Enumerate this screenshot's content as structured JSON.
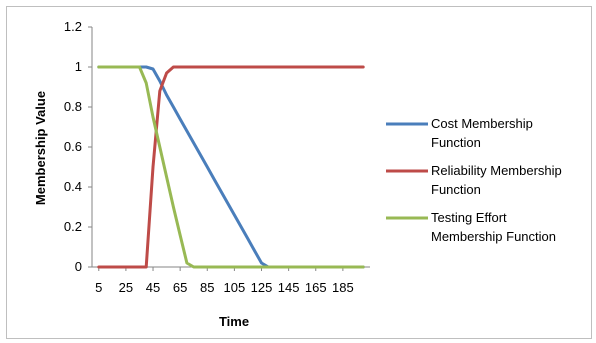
{
  "chart_data": {
    "type": "line",
    "title": "",
    "xlabel": "Time",
    "ylabel": "Membership Value",
    "x": [
      5,
      10,
      15,
      20,
      25,
      30,
      35,
      40,
      45,
      50,
      55,
      60,
      65,
      70,
      75,
      80,
      85,
      90,
      95,
      100,
      105,
      110,
      115,
      120,
      125,
      130,
      135,
      140,
      145,
      150,
      155,
      160,
      165,
      170,
      175,
      180,
      185,
      190,
      195,
      200
    ],
    "x_tick_labels": [
      "5",
      "25",
      "45",
      "65",
      "85",
      "105",
      "125",
      "145",
      "165",
      "185"
    ],
    "y_tick_labels": [
      "0",
      "0.2",
      "0.4",
      "0.6",
      "0.8",
      "1",
      "1.2"
    ],
    "ylim": [
      0,
      1.2
    ],
    "grid": false,
    "legend_position": "right",
    "series": [
      {
        "name": "Cost Membership Function",
        "color": "#4a7ebb",
        "values": [
          1,
          1,
          1,
          1,
          1,
          1,
          1,
          1,
          0.99,
          0.93,
          0.86,
          0.8,
          0.74,
          0.68,
          0.62,
          0.56,
          0.5,
          0.44,
          0.38,
          0.32,
          0.26,
          0.2,
          0.14,
          0.08,
          0.02,
          0,
          0,
          0,
          0,
          0,
          0,
          0,
          0,
          0,
          0,
          0,
          0,
          0,
          0,
          0
        ]
      },
      {
        "name": "Reliability Membership Function",
        "color": "#be4b48",
        "values": [
          0,
          0,
          0,
          0,
          0,
          0,
          0,
          0,
          0.5,
          0.88,
          0.97,
          1,
          1,
          1,
          1,
          1,
          1,
          1,
          1,
          1,
          1,
          1,
          1,
          1,
          1,
          1,
          1,
          1,
          1,
          1,
          1,
          1,
          1,
          1,
          1,
          1,
          1,
          1,
          1,
          1
        ]
      },
      {
        "name": "Testing Effort Membership Function",
        "color": "#98b954",
        "values": [
          1,
          1,
          1,
          1,
          1,
          1,
          1,
          0.92,
          0.75,
          0.6,
          0.45,
          0.3,
          0.16,
          0.02,
          0,
          0,
          0,
          0,
          0,
          0,
          0,
          0,
          0,
          0,
          0,
          0,
          0,
          0,
          0,
          0,
          0,
          0,
          0,
          0,
          0,
          0,
          0,
          0,
          0,
          0
        ]
      }
    ],
    "legend": [
      {
        "lines": [
          "Cost Membership",
          "Function"
        ],
        "color": "#4a7ebb"
      },
      {
        "lines": [
          "Reliability Membership",
          "Function"
        ],
        "color": "#be4b48"
      },
      {
        "lines": [
          "Testing Effort",
          "Membership Function"
        ],
        "color": "#98b954"
      }
    ]
  }
}
